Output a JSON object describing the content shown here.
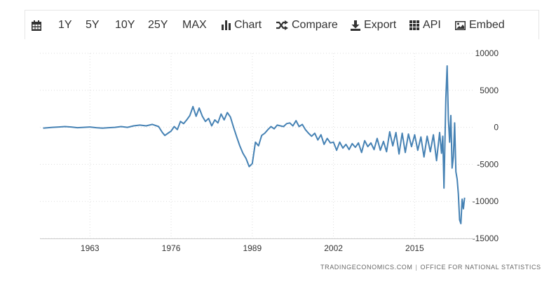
{
  "toolbar": {
    "items": [
      {
        "label": "",
        "icon": "calendar-icon"
      },
      {
        "label": "1Y"
      },
      {
        "label": "5Y"
      },
      {
        "label": "10Y"
      },
      {
        "label": "25Y"
      },
      {
        "label": "MAX"
      },
      {
        "label": "Chart",
        "icon": "bar-chart-icon"
      },
      {
        "label": "Compare",
        "icon": "shuffle-icon"
      },
      {
        "label": "Export",
        "icon": "download-icon"
      },
      {
        "label": "API",
        "icon": "grid-icon"
      },
      {
        "label": "Embed",
        "icon": "image-icon"
      }
    ]
  },
  "source": {
    "site": "TRADINGECONOMICS.COM",
    "separator": "|",
    "org": "OFFICE FOR NATIONAL STATISTICS"
  },
  "colors": {
    "line": "#4682b4",
    "grid": "#dddddd",
    "text": "#333333"
  },
  "chart_data": {
    "type": "line",
    "title": "",
    "xlabel": "",
    "ylabel": "",
    "x_ticks": [
      1963,
      1976,
      1989,
      2002,
      2015
    ],
    "y_ticks": [
      10000,
      5000,
      0,
      -5000,
      -10000,
      -15000
    ],
    "xlim": [
      1955,
      2024.5
    ],
    "ylim": [
      -15000,
      10000
    ],
    "grid": true,
    "series": [
      {
        "name": "",
        "x": [
          1955.5,
          1957,
          1958,
          1959,
          1960,
          1961,
          1962,
          1963,
          1964,
          1965,
          1966,
          1967,
          1968,
          1969,
          1970,
          1971,
          1972,
          1973,
          1974,
          1974.6,
          1975,
          1975.5,
          1976,
          1976.5,
          1977,
          1977.5,
          1978,
          1978.5,
          1979,
          1979.5,
          1980,
          1980.5,
          1981,
          1981.5,
          1982,
          1982.5,
          1983,
          1983.5,
          1984,
          1984.5,
          1985,
          1985.5,
          1986,
          1986.5,
          1987,
          1987.5,
          1988,
          1988.5,
          1989,
          1989.5,
          1990,
          1990.5,
          1991,
          1991.5,
          1992,
          1992.5,
          1993,
          1993.5,
          1994,
          1994.5,
          1995,
          1995.5,
          1996,
          1996.5,
          1997,
          1997.5,
          1998,
          1998.5,
          1999,
          1999.5,
          2000,
          2000.5,
          2001,
          2001.5,
          2002,
          2002.5,
          2003,
          2003.5,
          2004,
          2004.5,
          2005,
          2005.5,
          2006,
          2006.5,
          2007,
          2007.5,
          2008,
          2008.5,
          2009,
          2009.5,
          2010,
          2010.5,
          2011,
          2011.5,
          2012,
          2012.5,
          2013,
          2013.5,
          2014,
          2014.5,
          2015,
          2015.5,
          2016,
          2016.5,
          2017,
          2017.5,
          2018,
          2018.5,
          2019,
          2019.3,
          2019.5,
          2019.7,
          2020,
          2020.2,
          2020.4,
          2020.6,
          2020.8,
          2021,
          2021.2,
          2021.4,
          2021.6,
          2021.8,
          2022,
          2022.2,
          2022.4,
          2022.6,
          2022.8,
          2023
        ],
        "values": [
          -100,
          0,
          50,
          100,
          50,
          -50,
          0,
          50,
          -50,
          -100,
          -50,
          0,
          100,
          0,
          200,
          300,
          200,
          400,
          100,
          -700,
          -1100,
          -800,
          -500,
          100,
          -300,
          800,
          500,
          1000,
          1600,
          2800,
          1500,
          2600,
          1500,
          800,
          1200,
          200,
          1000,
          600,
          1800,
          1000,
          2000,
          1400,
          0,
          -1300,
          -2500,
          -3500,
          -4200,
          -5300,
          -4900,
          -2000,
          -2500,
          -1100,
          -800,
          -300,
          100,
          -200,
          300,
          200,
          100,
          500,
          600,
          200,
          900,
          100,
          400,
          -300,
          -800,
          -1200,
          -800,
          -1700,
          -1000,
          -2300,
          -1500,
          -2100,
          -2000,
          -3100,
          -2000,
          -2800,
          -2300,
          -3000,
          -2200,
          -2700,
          -2100,
          -3400,
          -1800,
          -2600,
          -2100,
          -3000,
          -1500,
          -3100,
          -1900,
          -3300,
          -600,
          -2500,
          -700,
          -3600,
          -800,
          -3400,
          -900,
          -2600,
          -1000,
          -3100,
          -1300,
          -4000,
          -1200,
          -3300,
          -1000,
          -4500,
          -700,
          -3500,
          -1200,
          -8200,
          4000,
          8300,
          1000,
          -2000,
          1600,
          -5500,
          -4000,
          600,
          -6000,
          -7000,
          -9000,
          -12500,
          -13000,
          -9700,
          -11000,
          -9500
        ]
      }
    ]
  }
}
